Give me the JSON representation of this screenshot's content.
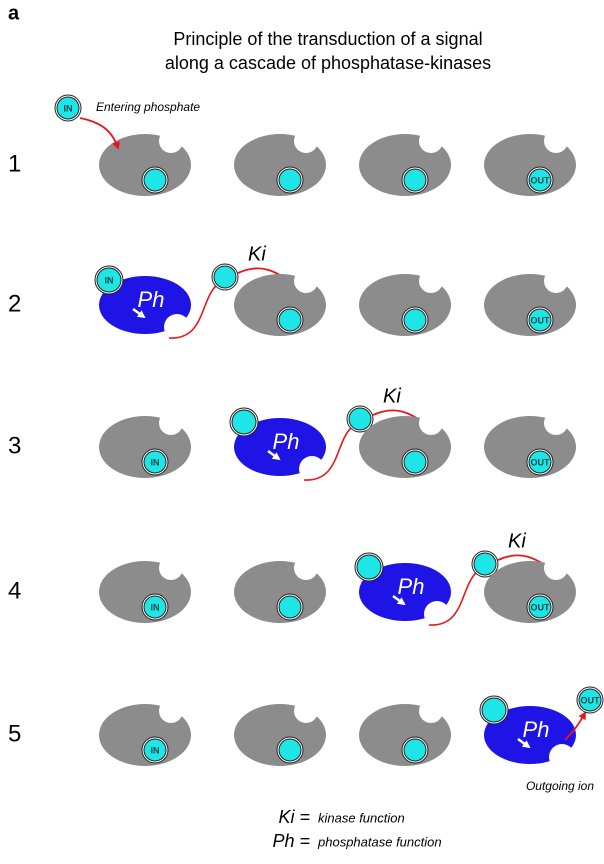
{
  "panel_label": "a",
  "title": [
    "Principle of the transduction of a signal",
    "along a cascade of phosphatase-kinases"
  ],
  "entering_label": "Entering phosphate",
  "outgoing_label": "Outgoing ion",
  "rows": [
    {
      "number": "1",
      "in_label": "IN",
      "out_label": "OUT"
    },
    {
      "number": "2",
      "in_label": "IN",
      "ph_label": "Ph",
      "ki_label": "Ki",
      "out_label": "OUT"
    },
    {
      "number": "3",
      "in_label": "IN",
      "ph_label": "Ph",
      "ki_label": "Ki",
      "out_label": "OUT"
    },
    {
      "number": "4",
      "in_label": "IN",
      "ph_label": "Ph",
      "ki_label": "Ki",
      "out_label": "OUT"
    },
    {
      "number": "5",
      "in_label": "IN",
      "ph_label": "Ph",
      "out_label": "OUT"
    }
  ],
  "legend": {
    "ki": "Ki =",
    "ki_text": "kinase function",
    "ph": "Ph =",
    "ph_text": "phosphatase function"
  }
}
